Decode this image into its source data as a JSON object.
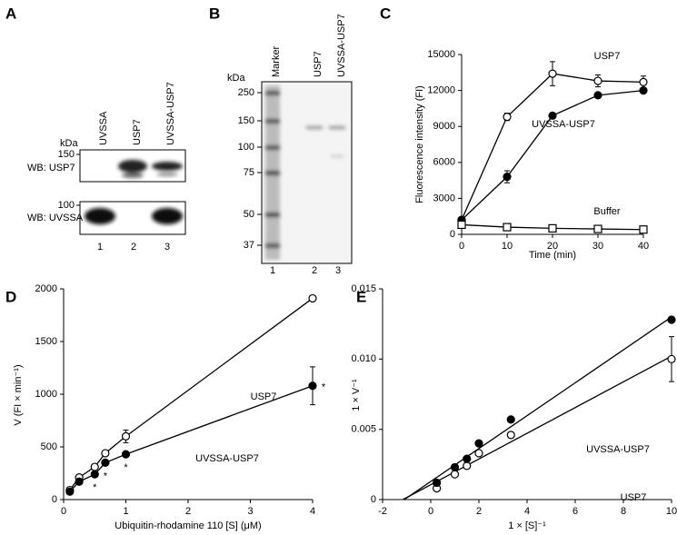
{
  "figure": {
    "panel_labels": [
      "A",
      "B",
      "C",
      "D",
      "E"
    ],
    "blot_a": {
      "kda_label": "kDa",
      "lanes": [
        "UVSSA",
        "USP7",
        "UVSSA-USP7"
      ],
      "blots": [
        {
          "label": "WB: USP7",
          "marker": 150
        },
        {
          "label": "WB: UVSSA",
          "marker": 100
        }
      ],
      "lane_numbers": [
        1,
        2,
        3
      ]
    },
    "gel_b": {
      "kda_label": "kDa",
      "lanes": [
        "Marker",
        "USP7",
        "UVSSA-USP7"
      ],
      "markers": [
        250,
        150,
        100,
        75,
        50,
        37
      ],
      "lane_numbers": [
        1,
        2,
        3
      ]
    }
  },
  "chart_data": [
    {
      "type": "line",
      "xlabel": "Time (min)",
      "ylabel": "Fluorescence intensity (FI)",
      "x": [
        0,
        10,
        20,
        30,
        40
      ],
      "xlim": [
        0,
        40
      ],
      "xticks": [
        0,
        10,
        20,
        30,
        40
      ],
      "ylim": [
        0,
        15000
      ],
      "yticks": [
        0,
        3000,
        6000,
        9000,
        12000,
        15000
      ],
      "series": [
        {
          "name": "USP7",
          "color": "#000000",
          "marker": "open-circle",
          "values": [
            1200,
            9800,
            13400,
            12800,
            12700
          ],
          "errors": [
            null,
            300,
            1000,
            500,
            500
          ]
        },
        {
          "name": "UVSSA-USP7",
          "color": "#000000",
          "marker": "filled-circle",
          "values": [
            1200,
            4800,
            9900,
            11600,
            12000
          ],
          "errors": [
            null,
            500,
            null,
            null,
            null
          ]
        },
        {
          "name": "Buffer",
          "color": "#000000",
          "marker": "open-square",
          "values": [
            800,
            600,
            500,
            450,
            400
          ],
          "errors": [
            null,
            null,
            null,
            null,
            null
          ]
        }
      ]
    },
    {
      "type": "line",
      "xlabel": "Ubiquitin-rhodamine 110 [S] (μM)",
      "ylabel": "V (FI × min⁻¹)",
      "x": [
        0.1,
        0.25,
        0.5,
        0.67,
        1,
        4
      ],
      "xlim": [
        0,
        4
      ],
      "xticks": [
        0,
        1,
        2,
        3,
        4
      ],
      "ylim": [
        0,
        2000
      ],
      "yticks": [
        0,
        500,
        1000,
        1500,
        2000
      ],
      "series": [
        {
          "name": "USP7",
          "color": "#000000",
          "marker": "open-circle",
          "values": [
            90,
            210,
            310,
            440,
            600,
            1910
          ],
          "errors": [
            null,
            null,
            null,
            null,
            60,
            null
          ]
        },
        {
          "name": "UVSSA-USP7",
          "color": "#000000",
          "marker": "filled-circle",
          "values": [
            75,
            170,
            240,
            350,
            430,
            1080
          ],
          "errors": [
            null,
            null,
            null,
            null,
            null,
            180
          ]
        }
      ],
      "annotations": [
        {
          "text": "*",
          "x": 0.5
        },
        {
          "text": "*",
          "x": 0.67
        },
        {
          "text": "*",
          "x": 1
        },
        {
          "text": "*",
          "x": 4
        }
      ]
    },
    {
      "type": "scatter",
      "xlabel": "1 × [S]⁻¹",
      "ylabel": "1 × V⁻¹",
      "fit": true,
      "x": [
        0.25,
        1,
        1.5,
        2,
        3.33,
        10
      ],
      "xlim": [
        -2,
        10
      ],
      "xticks": [
        -2,
        0,
        2,
        4,
        6,
        8,
        10
      ],
      "ylim": [
        0,
        0.015
      ],
      "yticks": [
        0,
        0.005,
        {
          "value": 0.01,
          "label": "0.010"
        },
        0.015
      ],
      "series": [
        {
          "name": "USP7",
          "color": "#000000",
          "marker": "open-circle",
          "values": [
            0.0008,
            0.0018,
            0.0024,
            0.0033,
            0.0046,
            0.01
          ],
          "errors": [
            null,
            null,
            null,
            null,
            0.0002,
            0.0016
          ]
        },
        {
          "name": "UVSSA-USP7",
          "color": "#000000",
          "marker": "filled-circle",
          "values": [
            0.0012,
            0.0023,
            0.0029,
            0.004,
            0.0057,
            0.0128
          ],
          "errors": [
            null,
            null,
            null,
            null,
            null,
            null
          ]
        }
      ]
    }
  ]
}
